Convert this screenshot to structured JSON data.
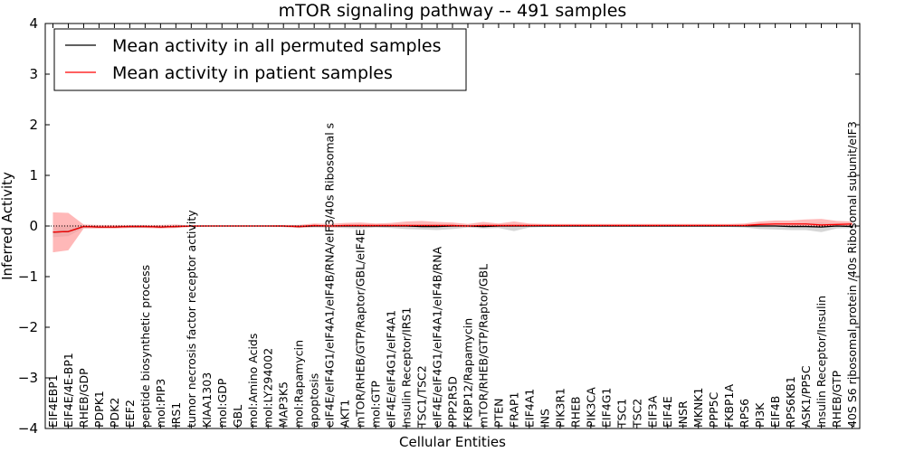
{
  "chart_data": {
    "type": "line",
    "title": "mTOR signaling pathway -- 491 samples",
    "xlabel": "Cellular Entities",
    "ylabel": "Inferred Activity",
    "ylim": [
      -4,
      4
    ],
    "yticks": [
      -4,
      -3,
      -2,
      -1,
      0,
      1,
      2,
      3,
      4
    ],
    "ytick_labels": [
      "−4",
      "−3",
      "−2",
      "−1",
      "0",
      "1",
      "2",
      "3",
      "4"
    ],
    "grid": false,
    "legend_position": "top-left",
    "categories": [
      "EIF4EBP1",
      "EIF4E/4E-BP1",
      "RHEB/GDP",
      "PDPK1",
      "PDK2",
      "EEF2",
      "peptide biosynthetic process",
      "mol:PIP3",
      "IRS1",
      "tumor necrosis factor receptor activity",
      "KIAA1303",
      "mol:GDP",
      "GBL",
      "mol:Amino Acids",
      "mol:LY294002",
      "MAP3K5",
      "mol:Rapamycin",
      "apoptosis",
      "eIF4E/eIF4G1/eIF4A1/eIF4B/RNA/eIF3/40s Ribosomal s",
      "AKT1",
      "mTOR/RHEB/GTP/Raptor/GBL/eIF4E",
      "mol:GTP",
      "eIF4E/eIF4G1/eIF4A1",
      "Insulin Receptor/IRS1",
      "TSC1/TSC2",
      "eIF4E/eIF4G1/eIF4A1/eIF4B/RNA",
      "PPP2R5D",
      "FKBP12/Rapamycin",
      "mTOR/RHEB/GTP/Raptor/GBL",
      "PTEN",
      "FRAP1",
      "EIF4A1",
      "INS",
      "PIK3R1",
      "RHEB",
      "PIK3CA",
      "EIF4G1",
      "TSC1",
      "TSC2",
      "EIF3A",
      "EIF4E",
      "INSR",
      "MKNK1",
      "PPP5C",
      "FKBP1A",
      "RPS6",
      "PI3K",
      "EIF4B",
      "RPS6KB1",
      "ASK1/PP5C",
      "Insulin Receptor/Insulin",
      "RHEB/GTP",
      "40S S6 ribosomal protein /40s Ribosomal subunit/eIF3"
    ],
    "series": [
      {
        "name": "Mean activity in all permuted samples",
        "color": "#000000",
        "values": [
          -0.12,
          -0.11,
          -0.01,
          -0.02,
          -0.02,
          -0.01,
          -0.01,
          -0.02,
          -0.01,
          0.0,
          0.0,
          0.0,
          0.0,
          0.0,
          0.0,
          0.0,
          -0.01,
          0.0,
          0.0,
          0.0,
          0.0,
          0.0,
          0.0,
          0.0,
          -0.01,
          -0.01,
          0.0,
          0.0,
          -0.01,
          0.0,
          0.0,
          0.0,
          0.0,
          0.0,
          0.0,
          0.0,
          0.0,
          0.0,
          0.0,
          0.0,
          0.0,
          0.0,
          0.0,
          0.0,
          0.0,
          0.0,
          0.0,
          0.0,
          -0.01,
          -0.01,
          -0.02,
          0.0,
          -0.01
        ],
        "band_lower": [
          -0.22,
          -0.2,
          -0.04,
          -0.04,
          -0.04,
          -0.03,
          -0.03,
          -0.04,
          -0.03,
          -0.01,
          -0.01,
          -0.01,
          -0.01,
          -0.01,
          -0.01,
          -0.02,
          -0.03,
          -0.03,
          -0.03,
          -0.04,
          -0.05,
          -0.03,
          -0.04,
          -0.06,
          -0.07,
          -0.08,
          -0.06,
          -0.03,
          -0.05,
          -0.04,
          -0.1,
          -0.03,
          -0.02,
          -0.02,
          -0.02,
          -0.02,
          -0.02,
          -0.02,
          -0.02,
          -0.02,
          -0.02,
          -0.02,
          -0.02,
          -0.02,
          -0.02,
          -0.03,
          -0.06,
          -0.07,
          -0.08,
          -0.08,
          -0.12,
          -0.05,
          -0.04
        ],
        "band_upper": [
          0.02,
          0.02,
          0.02,
          0.01,
          0.01,
          0.01,
          0.01,
          0.01,
          0.01,
          0.01,
          0.01,
          0.01,
          0.01,
          0.01,
          0.01,
          0.01,
          0.02,
          0.02,
          0.02,
          0.02,
          0.02,
          0.02,
          0.02,
          0.02,
          0.03,
          0.03,
          0.03,
          0.02,
          0.03,
          0.02,
          0.03,
          0.02,
          0.02,
          0.02,
          0.02,
          0.02,
          0.02,
          0.02,
          0.02,
          0.02,
          0.02,
          0.02,
          0.02,
          0.02,
          0.02,
          0.02,
          0.03,
          0.04,
          0.05,
          0.06,
          0.07,
          0.04,
          0.03
        ]
      },
      {
        "name": "Mean activity in patient samples",
        "color": "#ff0000",
        "values": [
          -0.12,
          -0.11,
          -0.01,
          -0.02,
          -0.02,
          -0.01,
          -0.01,
          -0.02,
          -0.01,
          0.0,
          0.0,
          0.0,
          0.0,
          0.0,
          0.0,
          0.0,
          -0.01,
          0.01,
          0.0,
          0.01,
          0.01,
          0.01,
          0.01,
          0.01,
          0.01,
          0.01,
          0.01,
          0.0,
          0.01,
          0.01,
          0.01,
          0.01,
          0.01,
          0.01,
          0.01,
          0.01,
          0.01,
          0.01,
          0.01,
          0.01,
          0.01,
          0.01,
          0.01,
          0.01,
          0.01,
          0.01,
          0.03,
          0.04,
          0.04,
          0.04,
          0.02,
          0.03,
          0.04
        ],
        "band_lower": [
          -0.52,
          -0.48,
          -0.05,
          -0.05,
          -0.05,
          -0.04,
          -0.04,
          -0.05,
          -0.04,
          -0.02,
          -0.01,
          -0.01,
          -0.01,
          -0.01,
          -0.01,
          -0.02,
          -0.04,
          -0.02,
          -0.03,
          -0.02,
          -0.02,
          -0.02,
          -0.02,
          -0.02,
          -0.02,
          -0.02,
          -0.02,
          -0.02,
          -0.02,
          -0.02,
          -0.02,
          -0.01,
          -0.01,
          -0.01,
          -0.01,
          -0.01,
          -0.01,
          -0.01,
          -0.01,
          -0.01,
          -0.01,
          -0.01,
          -0.01,
          -0.01,
          -0.01,
          -0.01,
          -0.01,
          -0.01,
          -0.01,
          -0.01,
          -0.02,
          -0.01,
          -0.01
        ],
        "band_upper": [
          0.27,
          0.26,
          0.03,
          0.02,
          0.02,
          0.02,
          0.02,
          0.02,
          0.03,
          0.01,
          0.01,
          0.01,
          0.01,
          0.01,
          0.01,
          0.02,
          0.02,
          0.05,
          0.04,
          0.06,
          0.07,
          0.05,
          0.06,
          0.09,
          0.1,
          0.08,
          0.07,
          0.04,
          0.08,
          0.05,
          0.09,
          0.05,
          0.04,
          0.04,
          0.04,
          0.04,
          0.04,
          0.04,
          0.04,
          0.04,
          0.04,
          0.04,
          0.04,
          0.04,
          0.04,
          0.05,
          0.09,
          0.11,
          0.11,
          0.13,
          0.14,
          0.1,
          0.09
        ]
      }
    ],
    "reference_line": {
      "y": 0,
      "style": "dotted",
      "color": "#000000"
    },
    "band_colors": {
      "permuted": "#c8c8c8",
      "patient": "#ff9a9a"
    }
  }
}
